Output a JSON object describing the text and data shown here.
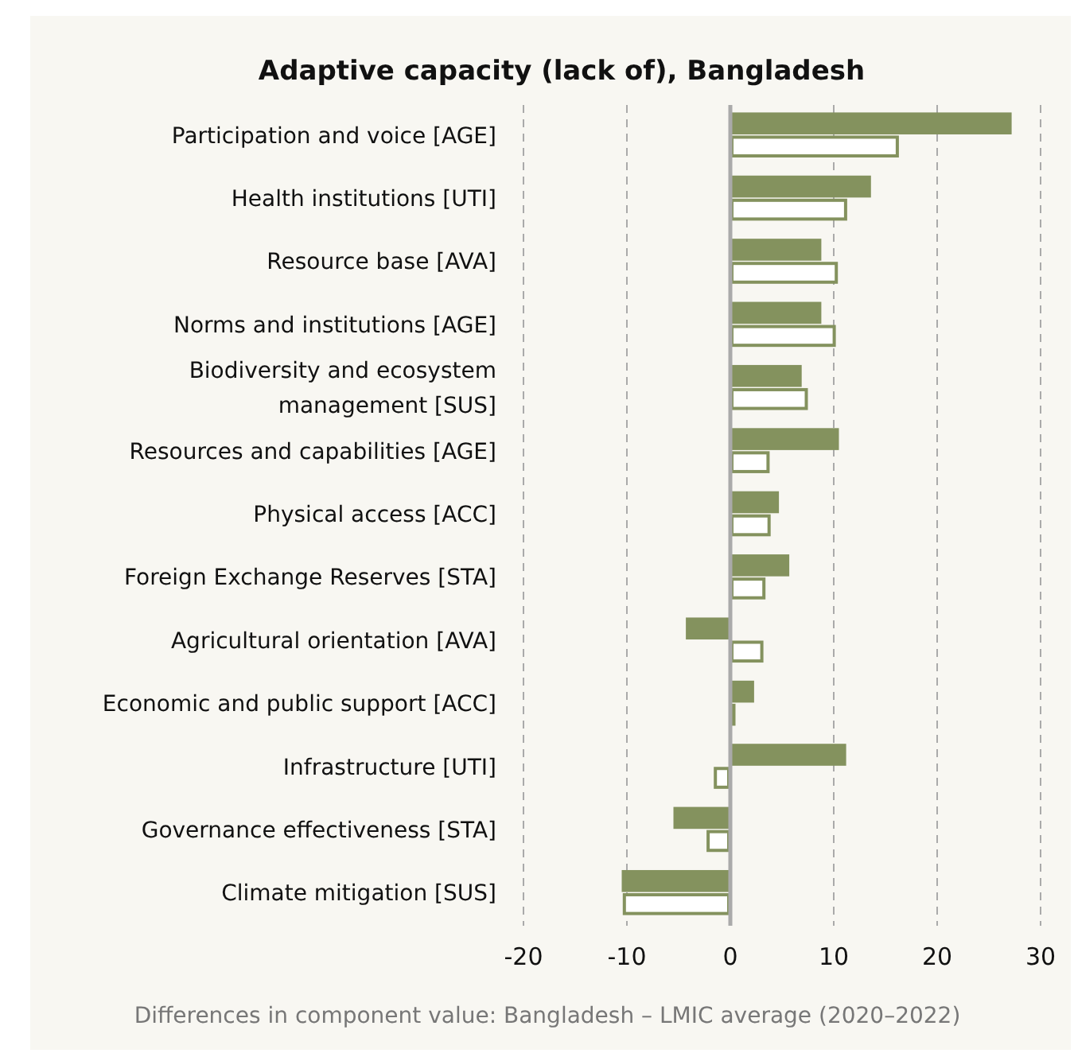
{
  "chart_data": {
    "type": "bar",
    "orientation": "horizontal",
    "title": "Adaptive capacity (lack of), Bangladesh",
    "categories": [
      "Participation and voice [AGE]",
      "Health institutions [UTI]",
      "Resource base [AVA]",
      "Norms and institutions [AGE]",
      "Biodiversity and ecosystem management [SUS]",
      "Resources and capabilities [AGE]",
      "Physical access [ACC]",
      "Foreign Exchange Reserves [STA]",
      "Agricultural orientation [AVA]",
      "Economic and public support [ACC]",
      "Infrastructure [UTI]",
      "Governance effectiveness [STA]",
      "Climate mitigation [SUS]"
    ],
    "series": [
      {
        "color": "#84925e",
        "values": [
          27.2,
          13.6,
          8.8,
          8.8,
          6.9,
          10.5,
          4.7,
          5.7,
          -4.3,
          2.3,
          11.2,
          -5.5,
          -10.5
        ]
      },
      {
        "color": "#84925e",
        "values": [
          16.3,
          11.3,
          10.4,
          10.2,
          7.5,
          3.8,
          3.9,
          3.4,
          3.2,
          0.5,
          -1.6,
          -2.3,
          -10.4
        ]
      }
    ],
    "xlim": [
      -20,
      30
    ],
    "xticks": [
      -20,
      -10,
      0,
      10,
      20,
      30
    ],
    "grid": "x",
    "annotations": [
      "Differences in component value: Bangladesh – LMIC average (2020–2022)"
    ]
  }
}
